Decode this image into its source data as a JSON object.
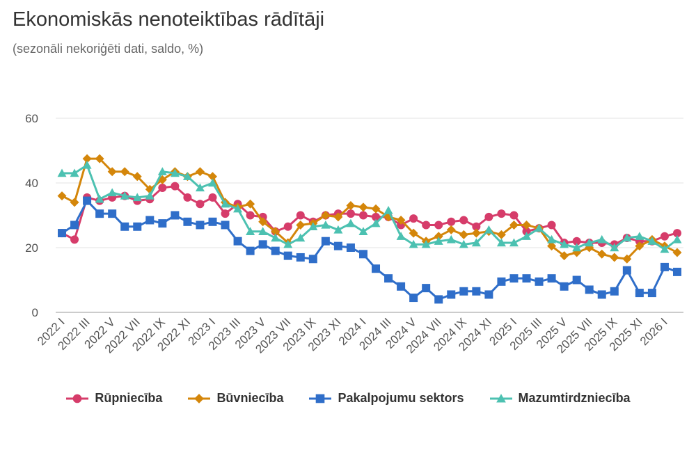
{
  "title": "Ekonomiskās nenoteiktības rādītāji",
  "subtitle": "(sezonāli nekoriģēti dati, saldo, %)",
  "chart_data": {
    "type": "line",
    "title": "Ekonomiskās nenoteiktības rādītāji",
    "subtitle": "(sezonāli nekoriģēti dati, saldo, %)",
    "xlabel": "",
    "ylabel": "",
    "ylim": [
      0,
      60
    ],
    "yticks": [
      0,
      20,
      40,
      60
    ],
    "grid": true,
    "legend_position": "bottom",
    "categories": [
      "2022 I",
      "2022 II",
      "2022 III",
      "2022 IV",
      "2022 V",
      "2022 VI",
      "2022 VII",
      "2022 VIII",
      "2022 IX",
      "2022 X",
      "2022 XI",
      "2022 XII",
      "2023 I",
      "2023 II",
      "2023 III",
      "2023 IV",
      "2023 V",
      "2023 VI",
      "2023 VII",
      "2023 VIII",
      "2023 IX",
      "2023 X",
      "2023 XI",
      "2023 XII",
      "2024 I",
      "2024 II",
      "2024 III",
      "2024 IV",
      "2024 V",
      "2024 VI",
      "2024 VII",
      "2024 VIII",
      "2024 IX",
      "2024 X",
      "2024 XI",
      "2024 XII",
      "2025 I",
      "2025 II",
      "2025 III",
      "2025 IV",
      "2025 V",
      "2025 VI",
      "2025 VII",
      "2025 VIII",
      "2025 IX",
      "2025 X",
      "2025 XI",
      "2025 XII",
      "2026 I",
      "2026 II"
    ],
    "tick_labels": [
      "2022 I",
      "2022 III",
      "2022 V",
      "2022 VII",
      "2022 IX",
      "2022 XI",
      "2023 I",
      "2023 III",
      "2023 V",
      "2023 VII",
      "2023 IX",
      "2023 XI",
      "2024 I",
      "2024 III",
      "2024 V",
      "2024 VII",
      "2024 IX",
      "2024 XI",
      "2025 I",
      "2025 III",
      "2025 V",
      "2025 VII",
      "2025 IX",
      "2025 XI",
      "2026 I"
    ],
    "series": [
      {
        "name": "Rūpniecība",
        "color": "#d63c6a",
        "marker": "circle",
        "values": [
          24.5,
          22.5,
          35.5,
          34.5,
          35.5,
          36.0,
          34.5,
          35.0,
          38.5,
          39.0,
          35.5,
          33.5,
          35.5,
          30.5,
          33.5,
          30.0,
          29.5,
          25.0,
          26.5,
          30.0,
          28.0,
          30.0,
          30.5,
          30.5,
          30.0,
          29.5,
          29.5,
          27.0,
          29.0,
          27.0,
          27.0,
          28.0,
          28.5,
          26.5,
          29.5,
          30.5,
          30.0,
          25.0,
          26.0,
          27.0,
          21.5,
          22.0,
          21.5,
          21.5,
          21.0,
          23.0,
          22.0,
          22.0,
          23.5,
          24.5
        ]
      },
      {
        "name": "Būvniecība",
        "color": "#d4860a",
        "marker": "diamond",
        "values": [
          36.0,
          34.0,
          47.5,
          47.5,
          43.5,
          43.5,
          42.0,
          38.0,
          41.0,
          43.5,
          42.0,
          43.5,
          42.0,
          34.0,
          32.5,
          33.5,
          28.0,
          25.0,
          21.5,
          27.0,
          27.5,
          30.0,
          29.5,
          33.0,
          32.5,
          32.0,
          29.5,
          28.5,
          24.5,
          22.0,
          23.5,
          25.5,
          24.0,
          24.5,
          25.0,
          24.0,
          27.0,
          27.0,
          26.0,
          20.5,
          17.5,
          18.5,
          20.0,
          18.0,
          17.0,
          16.5,
          20.5,
          22.5,
          20.5,
          18.5
        ]
      },
      {
        "name": "Pakalpojumu sektors",
        "color": "#2f6ec9",
        "marker": "square",
        "values": [
          24.5,
          27.0,
          34.5,
          30.5,
          30.5,
          26.5,
          26.5,
          28.5,
          27.5,
          30.0,
          28.0,
          27.0,
          28.0,
          27.0,
          22.0,
          19.0,
          21.0,
          19.0,
          17.5,
          17.0,
          16.5,
          22.0,
          20.5,
          20.0,
          18.0,
          13.5,
          10.5,
          8.0,
          4.5,
          7.5,
          4.0,
          5.5,
          6.5,
          6.5,
          5.5,
          9.5,
          10.5,
          10.5,
          9.5,
          10.5,
          8.0,
          10.0,
          7.0,
          5.5,
          6.5,
          13.0,
          6.0,
          6.0,
          14.0,
          12.5
        ]
      },
      {
        "name": "Mazumtirdzniecība",
        "color": "#4cc1b1",
        "marker": "triangle",
        "values": [
          43.0,
          43.0,
          45.5,
          35.0,
          37.0,
          36.0,
          35.5,
          36.0,
          43.5,
          43.0,
          42.0,
          38.5,
          40.0,
          33.5,
          32.0,
          25.0,
          25.0,
          23.0,
          21.0,
          23.0,
          26.5,
          27.0,
          25.5,
          27.5,
          25.0,
          27.5,
          31.5,
          23.5,
          21.0,
          21.0,
          22.0,
          22.5,
          21.0,
          21.5,
          25.5,
          21.5,
          21.5,
          23.5,
          26.0,
          22.5,
          21.0,
          20.0,
          21.5,
          22.5,
          20.0,
          23.0,
          23.5,
          22.0,
          19.5,
          22.5
        ]
      }
    ]
  }
}
